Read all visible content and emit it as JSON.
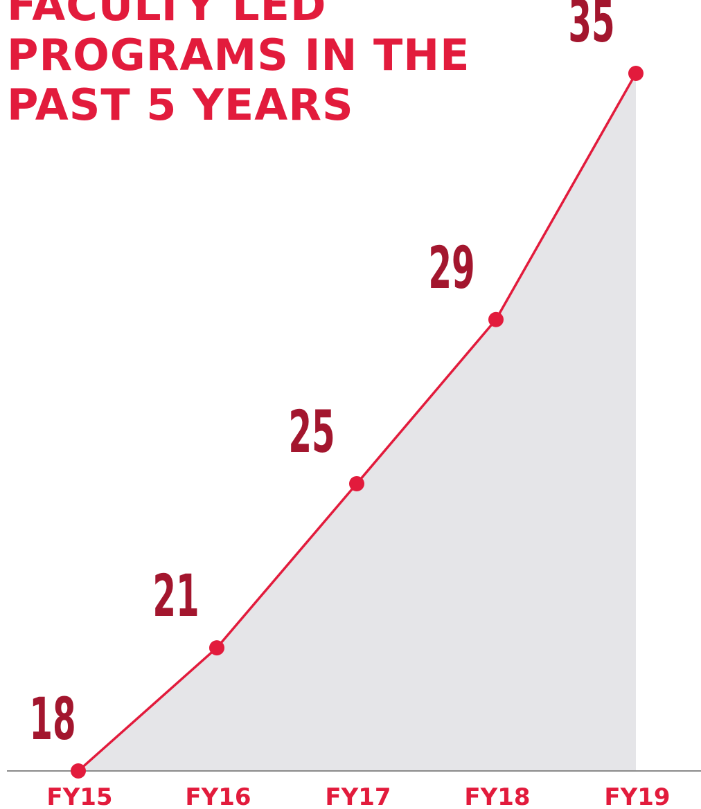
{
  "colors": {
    "accent": "#e21b3c",
    "label": "#a3162e",
    "fill": "#e5e5e8",
    "axis": "#8a8a8a"
  },
  "chart_data": {
    "type": "area",
    "title_lines": [
      "FACULTY LED",
      "PROGRAMS IN THE",
      "PAST 5 YEARS"
    ],
    "xlabel": "",
    "ylabel": "",
    "categories": [
      "FY15",
      "FY16",
      "FY17",
      "FY18",
      "FY19"
    ],
    "series": [
      {
        "values": [
          18,
          21,
          25,
          29,
          35
        ]
      }
    ],
    "data_labels": [
      "18",
      "21",
      "25",
      "29",
      "35"
    ],
    "ylim": [
      18,
      35
    ],
    "grid": false,
    "legend": "none",
    "markers": true
  }
}
